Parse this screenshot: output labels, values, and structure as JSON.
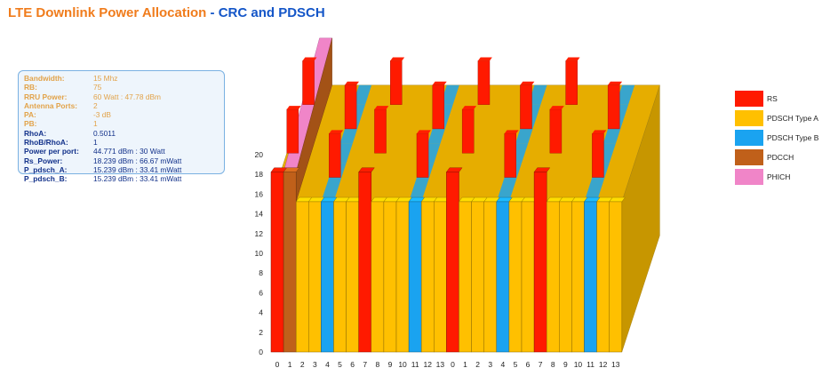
{
  "title": {
    "part1": "LTE Downlink Power Allocation",
    "sep": " - ",
    "part2": "CRC and PDSCH"
  },
  "params": [
    {
      "key": "Bandwidth:",
      "value": "15 Mhz",
      "style": "dim"
    },
    {
      "key": "RB:",
      "value": "75",
      "style": "dim"
    },
    {
      "key": "RRU Power:",
      "value": "60 Watt : 47.78 dBm",
      "style": "dim"
    },
    {
      "key": "Antenna Ports:",
      "value": "2",
      "style": "dim"
    },
    {
      "key": "PA:",
      "value": "-3 dB",
      "style": "dim"
    },
    {
      "key": "PB:",
      "value": "1",
      "style": "dim"
    },
    {
      "key": "RhoA:",
      "value": "0.5011",
      "style": "hl"
    },
    {
      "key": "RhoB/RhoA:",
      "value": "1",
      "style": "hl"
    },
    {
      "key": "Power per port:",
      "value": "44.771 dBm : 30 Watt",
      "style": "hl"
    },
    {
      "key": "Rs_Power:",
      "value": "18.239 dBm : 66.67 mWatt",
      "style": "hl"
    },
    {
      "key": "P_pdsch_A:",
      "value": "15.239 dBm : 33.41 mWatt",
      "style": "hl"
    },
    {
      "key": "P_pdsch_B:",
      "value": "15.239 dBm : 33.41 mWatt",
      "style": "hl"
    }
  ],
  "legend": [
    {
      "label": "RS",
      "color": "#ff1a00"
    },
    {
      "label": "PDSCH Type A",
      "color": "#ffc000"
    },
    {
      "label": "PDSCH Type B",
      "color": "#1aa3f0"
    },
    {
      "label": "PDCCH",
      "color": "#c0601a"
    },
    {
      "label": "PHICH",
      "color": "#f085c8"
    }
  ],
  "chart_data": {
    "type": "bar",
    "title": "LTE Downlink Power Allocation - CRC and PDSCH",
    "categories": [
      "0",
      "1",
      "2",
      "3",
      "4",
      "5",
      "6",
      "7",
      "8",
      "9",
      "10",
      "11",
      "12",
      "13",
      "0",
      "1",
      "2",
      "3",
      "4",
      "5",
      "6",
      "7",
      "8",
      "9",
      "10",
      "11",
      "12",
      "13"
    ],
    "ylim": [
      0,
      20
    ],
    "yticks": [
      0,
      2,
      4,
      6,
      8,
      10,
      12,
      14,
      16,
      18,
      20
    ],
    "front_row": {
      "values": [
        18.239,
        18.239,
        15.239,
        15.239,
        15.239,
        15.239,
        15.239,
        18.239,
        15.239,
        15.239,
        15.239,
        15.239,
        15.239,
        15.239,
        18.239,
        15.239,
        15.239,
        15.239,
        15.239,
        15.239,
        15.239,
        18.239,
        15.239,
        15.239,
        15.239,
        15.239,
        15.239,
        15.239
      ],
      "types": [
        "RS",
        "PDCCH",
        "PDSCH Type A",
        "PDSCH Type A",
        "PDSCH Type B",
        "PDSCH Type A",
        "PDSCH Type A",
        "RS",
        "PDSCH Type A",
        "PDSCH Type A",
        "PDSCH Type A",
        "PDSCH Type B",
        "PDSCH Type A",
        "PDSCH Type A",
        "RS",
        "PDSCH Type A",
        "PDSCH Type A",
        "PDSCH Type A",
        "PDSCH Type B",
        "PDSCH Type A",
        "PDSCH Type A",
        "RS",
        "PDSCH Type A",
        "PDSCH Type A",
        "PDSCH Type A",
        "PDSCH Type B",
        "PDSCH Type A",
        "PDSCH Type A"
      ]
    },
    "pdsch_a_value": 15.239,
    "rs_value": 18.239,
    "colors": {
      "RS": "#ff1a00",
      "PDSCH Type A": "#ffc000",
      "PDSCH Type B": "#1aa3f0",
      "PDCCH": "#c0601a",
      "PHICH": "#f085c8"
    },
    "rs_pattern": [
      [
        4,
        11,
        18,
        25
      ],
      [
        0,
        7,
        14,
        21
      ],
      [
        4,
        11,
        18,
        25
      ],
      [
        0,
        7,
        14,
        21
      ]
    ],
    "depth_rows": 12,
    "series": [
      {
        "name": "RS",
        "value": 18.239
      },
      {
        "name": "PDSCH Type A",
        "value": 15.239
      },
      {
        "name": "PDSCH Type B",
        "value": 15.239
      }
    ]
  }
}
